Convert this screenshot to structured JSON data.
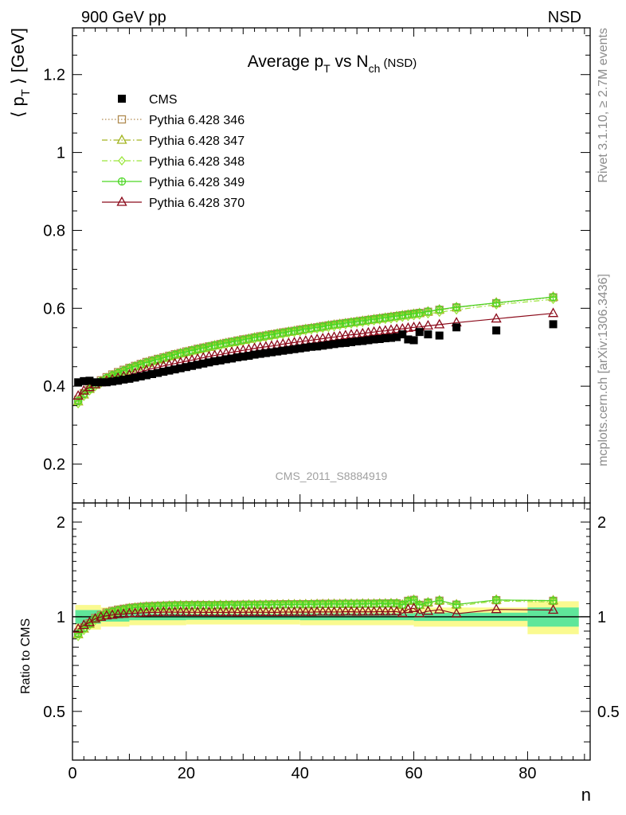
{
  "header": {
    "left": "900 GeV pp",
    "right": "NSD"
  },
  "side_labels": {
    "rivet": "Rivet 3.1.10, ≥ 2.7M events",
    "mcplots": "mcplots.cern.ch [arXiv:1306.3436]"
  },
  "analysis_id": "CMS_2011_S8884919",
  "chart_data": [
    {
      "type": "scatter",
      "title": "Average p_T vs N_ch (NSD)",
      "title_parts": {
        "a": "Average p",
        "a_sub": "T",
        "b": " vs N",
        "b_sub": "ch",
        "c": " (NSD)"
      },
      "ylabel": "⟨ p_T ⟩ [GeV]",
      "ylabel_parts": {
        "open": "⟨ p",
        "sub": "T",
        "close": " ⟩ [GeV]"
      },
      "xlabel": "n",
      "xlim": [
        0,
        91
      ],
      "ylim": [
        0.1,
        1.32
      ],
      "xticks": [
        "0",
        "20",
        "40",
        "60",
        "80"
      ],
      "yticks": [
        "0.2",
        "0.4",
        "0.6",
        "0.8",
        "1",
        "1.2"
      ],
      "legend_position": "top-left",
      "series": [
        {
          "name": "CMS",
          "color": "#000000",
          "marker": "square-filled",
          "x": [
            1,
            2,
            3,
            4,
            5,
            6,
            7,
            8,
            9,
            10,
            11,
            12,
            13,
            14,
            15,
            16,
            17,
            18,
            19,
            20,
            21,
            22,
            23,
            24,
            25,
            26,
            27,
            28,
            29,
            30,
            31,
            32,
            33,
            34,
            35,
            36,
            37,
            38,
            39,
            40,
            41,
            42,
            43,
            44,
            45,
            46,
            47,
            48,
            49,
            50,
            51,
            52,
            53,
            54,
            55,
            56,
            57,
            58,
            59,
            60,
            61,
            62.5,
            64.5,
            67.5,
            74.5,
            84.5
          ],
          "y": [
            0.41,
            0.413,
            0.414,
            0.41,
            0.41,
            0.41,
            0.412,
            0.414,
            0.417,
            0.419,
            0.422,
            0.425,
            0.428,
            0.431,
            0.434,
            0.437,
            0.44,
            0.443,
            0.446,
            0.449,
            0.452,
            0.455,
            0.458,
            0.461,
            0.464,
            0.466,
            0.469,
            0.471,
            0.474,
            0.476,
            0.478,
            0.481,
            0.483,
            0.485,
            0.487,
            0.489,
            0.491,
            0.493,
            0.495,
            0.497,
            0.499,
            0.501,
            0.502,
            0.504,
            0.506,
            0.508,
            0.51,
            0.511,
            0.513,
            0.515,
            0.516,
            0.518,
            0.52,
            0.521,
            0.523,
            0.524,
            0.526,
            0.533,
            0.52,
            0.518,
            0.539,
            0.533,
            0.53,
            0.551,
            0.543,
            0.559
          ]
        },
        {
          "name": "Pythia 6.428 346",
          "color": "#b08a50",
          "marker": "square-open",
          "line": "dotted",
          "x": [
            1,
            2,
            3,
            4,
            5,
            6,
            7,
            8,
            9,
            10,
            11,
            12,
            13,
            14,
            15,
            16,
            17,
            18,
            19,
            20,
            21,
            22,
            23,
            24,
            25,
            26,
            27,
            28,
            29,
            30,
            31,
            32,
            33,
            34,
            35,
            36,
            37,
            38,
            39,
            40,
            41,
            42,
            43,
            44,
            45,
            46,
            47,
            48,
            49,
            50,
            51,
            52,
            53,
            54,
            55,
            56,
            57,
            58,
            59,
            60,
            61,
            62.5,
            64.5,
            67.5,
            74.5,
            84.5
          ],
          "y": [
            0.365,
            0.382,
            0.395,
            0.406,
            0.415,
            0.423,
            0.43,
            0.436,
            0.442,
            0.447,
            0.452,
            0.457,
            0.462,
            0.466,
            0.47,
            0.474,
            0.478,
            0.482,
            0.485,
            0.489,
            0.492,
            0.496,
            0.499,
            0.502,
            0.505,
            0.508,
            0.511,
            0.514,
            0.517,
            0.52,
            0.522,
            0.525,
            0.528,
            0.53,
            0.533,
            0.535,
            0.538,
            0.54,
            0.542,
            0.545,
            0.547,
            0.549,
            0.551,
            0.554,
            0.556,
            0.558,
            0.56,
            0.562,
            0.564,
            0.566,
            0.568,
            0.57,
            0.572,
            0.574,
            0.576,
            0.578,
            0.58,
            0.582,
            0.584,
            0.586,
            0.588,
            0.591,
            0.596,
            0.602,
            0.613,
            0.628
          ]
        },
        {
          "name": "Pythia 6.428 347",
          "color": "#a3b521",
          "marker": "triangle-open",
          "line": "dash-dot",
          "x": [
            1,
            2,
            3,
            4,
            5,
            6,
            7,
            8,
            9,
            10,
            11,
            12,
            13,
            14,
            15,
            16,
            17,
            18,
            19,
            20,
            21,
            22,
            23,
            24,
            25,
            26,
            27,
            28,
            29,
            30,
            31,
            32,
            33,
            34,
            35,
            36,
            37,
            38,
            39,
            40,
            41,
            42,
            43,
            44,
            45,
            46,
            47,
            48,
            49,
            50,
            51,
            52,
            53,
            54,
            55,
            56,
            57,
            58,
            59,
            60,
            61,
            62.5,
            64.5,
            67.5,
            74.5,
            84.5
          ],
          "y": [
            0.36,
            0.378,
            0.392,
            0.403,
            0.412,
            0.42,
            0.427,
            0.433,
            0.439,
            0.445,
            0.45,
            0.455,
            0.46,
            0.464,
            0.468,
            0.472,
            0.476,
            0.48,
            0.484,
            0.487,
            0.491,
            0.494,
            0.497,
            0.5,
            0.504,
            0.507,
            0.51,
            0.512,
            0.515,
            0.518,
            0.521,
            0.524,
            0.526,
            0.529,
            0.531,
            0.534,
            0.536,
            0.539,
            0.541,
            0.543,
            0.546,
            0.548,
            0.55,
            0.552,
            0.555,
            0.557,
            0.559,
            0.561,
            0.563,
            0.565,
            0.567,
            0.569,
            0.571,
            0.573,
            0.575,
            0.577,
            0.579,
            0.581,
            0.583,
            0.585,
            0.587,
            0.591,
            0.596,
            0.602,
            0.614,
            0.629
          ]
        },
        {
          "name": "Pythia 6.428 348",
          "color": "#9ae63a",
          "marker": "diamond-open",
          "line": "dash-dot",
          "x": [
            1,
            2,
            3,
            4,
            5,
            6,
            7,
            8,
            9,
            10,
            11,
            12,
            13,
            14,
            15,
            16,
            17,
            18,
            19,
            20,
            21,
            22,
            23,
            24,
            25,
            26,
            27,
            28,
            29,
            30,
            31,
            32,
            33,
            34,
            35,
            36,
            37,
            38,
            39,
            40,
            41,
            42,
            43,
            44,
            45,
            46,
            47,
            48,
            49,
            50,
            51,
            52,
            53,
            54,
            55,
            56,
            57,
            58,
            59,
            60,
            61,
            62.5,
            64.5,
            67.5,
            74.5,
            84.5
          ],
          "y": [
            0.355,
            0.374,
            0.388,
            0.399,
            0.408,
            0.416,
            0.423,
            0.429,
            0.435,
            0.441,
            0.446,
            0.451,
            0.456,
            0.46,
            0.465,
            0.469,
            0.473,
            0.477,
            0.48,
            0.484,
            0.487,
            0.491,
            0.494,
            0.497,
            0.5,
            0.503,
            0.506,
            0.509,
            0.512,
            0.515,
            0.518,
            0.52,
            0.523,
            0.526,
            0.528,
            0.531,
            0.533,
            0.536,
            0.538,
            0.54,
            0.543,
            0.545,
            0.547,
            0.549,
            0.551,
            0.553,
            0.556,
            0.558,
            0.56,
            0.562,
            0.564,
            0.566,
            0.568,
            0.57,
            0.572,
            0.573,
            0.575,
            0.577,
            0.579,
            0.581,
            0.583,
            0.586,
            0.59,
            0.596,
            0.609,
            0.623
          ]
        },
        {
          "name": "Pythia 6.428 349",
          "color": "#4cd624",
          "marker": "circle-cross",
          "line": "solid",
          "x": [
            1,
            2,
            3,
            4,
            5,
            6,
            7,
            8,
            9,
            10,
            11,
            12,
            13,
            14,
            15,
            16,
            17,
            18,
            19,
            20,
            21,
            22,
            23,
            24,
            25,
            26,
            27,
            28,
            29,
            30,
            31,
            32,
            33,
            34,
            35,
            36,
            37,
            38,
            39,
            40,
            41,
            42,
            43,
            44,
            45,
            46,
            47,
            48,
            49,
            50,
            51,
            52,
            53,
            54,
            55,
            56,
            57,
            58,
            59,
            60,
            61,
            62.5,
            64.5,
            67.5,
            74.5,
            84.5
          ],
          "y": [
            0.362,
            0.38,
            0.393,
            0.404,
            0.413,
            0.421,
            0.428,
            0.434,
            0.44,
            0.446,
            0.451,
            0.456,
            0.461,
            0.465,
            0.469,
            0.473,
            0.477,
            0.481,
            0.485,
            0.488,
            0.492,
            0.495,
            0.498,
            0.502,
            0.505,
            0.508,
            0.511,
            0.514,
            0.516,
            0.519,
            0.522,
            0.525,
            0.527,
            0.53,
            0.532,
            0.535,
            0.537,
            0.54,
            0.542,
            0.544,
            0.547,
            0.549,
            0.551,
            0.553,
            0.556,
            0.558,
            0.56,
            0.562,
            0.564,
            0.566,
            0.568,
            0.57,
            0.572,
            0.574,
            0.576,
            0.578,
            0.58,
            0.582,
            0.584,
            0.586,
            0.588,
            0.592,
            0.597,
            0.603,
            0.614,
            0.629
          ]
        },
        {
          "name": "Pythia 6.428 370",
          "color": "#8b0a1a",
          "marker": "triangle-open",
          "line": "solid",
          "x": [
            1,
            2,
            3,
            4,
            5,
            6,
            7,
            8,
            9,
            10,
            11,
            12,
            13,
            14,
            15,
            16,
            17,
            18,
            19,
            20,
            21,
            22,
            23,
            24,
            25,
            26,
            27,
            28,
            29,
            30,
            31,
            32,
            33,
            34,
            35,
            36,
            37,
            38,
            39,
            40,
            41,
            42,
            43,
            44,
            45,
            46,
            47,
            48,
            49,
            50,
            51,
            52,
            53,
            54,
            55,
            56,
            57,
            58,
            59,
            60,
            61,
            62.5,
            64.5,
            67.5,
            74.5,
            84.5
          ],
          "y": [
            0.375,
            0.388,
            0.397,
            0.404,
            0.409,
            0.413,
            0.417,
            0.421,
            0.425,
            0.429,
            0.433,
            0.437,
            0.441,
            0.445,
            0.448,
            0.452,
            0.455,
            0.458,
            0.461,
            0.464,
            0.467,
            0.47,
            0.473,
            0.476,
            0.479,
            0.481,
            0.484,
            0.487,
            0.489,
            0.492,
            0.494,
            0.497,
            0.499,
            0.501,
            0.503,
            0.505,
            0.508,
            0.51,
            0.512,
            0.514,
            0.516,
            0.518,
            0.52,
            0.522,
            0.524,
            0.526,
            0.528,
            0.53,
            0.532,
            0.533,
            0.535,
            0.537,
            0.539,
            0.541,
            0.542,
            0.544,
            0.546,
            0.547,
            0.549,
            0.551,
            0.552,
            0.555,
            0.558,
            0.563,
            0.573,
            0.587
          ]
        }
      ]
    },
    {
      "type": "scatter",
      "ylabel": "Ratio to CMS",
      "xlabel": "n",
      "xlim": [
        0,
        91
      ],
      "ylim": [
        0.35,
        2.3
      ],
      "yscale": "log",
      "xticks": [
        "0",
        "20",
        "40",
        "60",
        "80"
      ],
      "yticks": [
        "0.5",
        "1",
        "2"
      ],
      "reference": 1.0,
      "uncertainty_bands": {
        "inner_color": "#5fe69a",
        "outer_color": "#fafa90",
        "x_edges": [
          0.5,
          5,
          10,
          20,
          40,
          60,
          80,
          89
        ],
        "inner": [
          0.05,
          0.035,
          0.025,
          0.022,
          0.025,
          0.03,
          0.07
        ],
        "outer": [
          0.09,
          0.07,
          0.06,
          0.055,
          0.06,
          0.07,
          0.12
        ]
      }
    }
  ]
}
